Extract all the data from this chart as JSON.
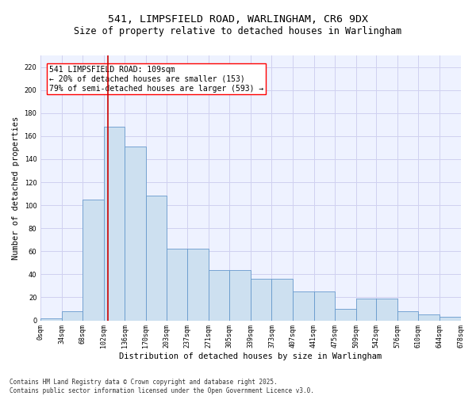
{
  "title_line1": "541, LIMPSFIELD ROAD, WARLINGHAM, CR6 9DX",
  "title_line2": "Size of property relative to detached houses in Warlingham",
  "xlabel": "Distribution of detached houses by size in Warlingham",
  "ylabel": "Number of detached properties",
  "bar_color": "#cde0f0",
  "bar_edge_color": "#6699cc",
  "grid_color": "#d0d0f0",
  "background_color": "#eef2ff",
  "annotation_text": "541 LIMPSFIELD ROAD: 109sqm\n← 20% of detached houses are smaller (153)\n79% of semi-detached houses are larger (593) →",
  "vline_x": 109,
  "vline_color": "#cc0000",
  "bin_edges": [
    0,
    34,
    68,
    102,
    136,
    170,
    203,
    237,
    271,
    305,
    339,
    373,
    407,
    441,
    475,
    509,
    542,
    576,
    610,
    644,
    678
  ],
  "bar_heights": [
    2,
    8,
    105,
    168,
    151,
    108,
    62,
    62,
    44,
    44,
    36,
    36,
    25,
    25,
    10,
    19,
    19,
    8,
    5,
    3
  ],
  "tick_labels": [
    "0sqm",
    "34sqm",
    "68sqm",
    "102sqm",
    "136sqm",
    "170sqm",
    "203sqm",
    "237sqm",
    "271sqm",
    "305sqm",
    "339sqm",
    "373sqm",
    "407sqm",
    "441sqm",
    "475sqm",
    "509sqm",
    "542sqm",
    "576sqm",
    "610sqm",
    "644sqm",
    "678sqm"
  ],
  "ylim": [
    0,
    230
  ],
  "yticks": [
    0,
    20,
    40,
    60,
    80,
    100,
    120,
    140,
    160,
    180,
    200,
    220
  ],
  "footnote": "Contains HM Land Registry data © Crown copyright and database right 2025.\nContains public sector information licensed under the Open Government Licence v3.0.",
  "title_fontsize": 9.5,
  "subtitle_fontsize": 8.5,
  "axis_label_fontsize": 7.5,
  "tick_fontsize": 6,
  "footnote_fontsize": 5.5,
  "annotation_fontsize": 7
}
